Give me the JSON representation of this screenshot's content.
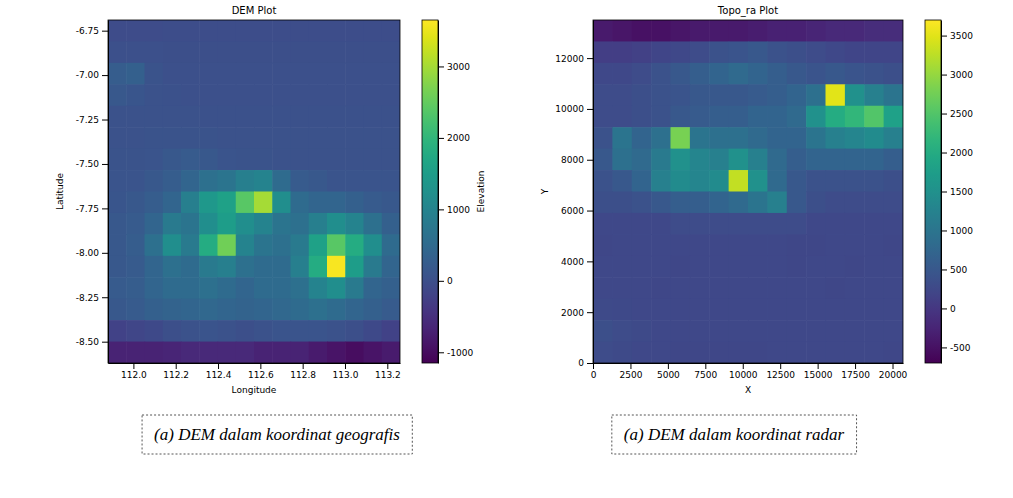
{
  "chart_data": [
    {
      "type": "heatmap",
      "title": "DEM Plot",
      "x_label": "Longitude",
      "y_label": "Latitude",
      "caption": "(a) DEM dalam koordinat geografis",
      "color": "viridis",
      "xlim": [
        111.88,
        113.26
      ],
      "ylim": [
        -8.62,
        -6.69
      ],
      "xticks": [
        {
          "value": 112,
          "label": "112.0"
        },
        112.2,
        112.4,
        112.6,
        112.8,
        {
          "value": 113,
          "label": "113.0"
        },
        113.2
      ],
      "yticks": [
        -6.75,
        {
          "value": -7,
          "label": "-7.00"
        },
        -7.25,
        {
          "value": -7.5,
          "label": "-7.50"
        },
        -7.75,
        {
          "value": -8,
          "label": "-8.00"
        },
        -8.25,
        {
          "value": -8.5,
          "label": "-8.50"
        }
      ],
      "z": [
        [
          -50,
          -50,
          -50,
          -40,
          -40,
          -40,
          -40,
          -40,
          -40,
          -40,
          -40,
          -40,
          -40,
          -40,
          -40,
          -40
        ],
        [
          20,
          30,
          20,
          10,
          10,
          10,
          10,
          10,
          10,
          10,
          10,
          10,
          10,
          10,
          10,
          10
        ],
        [
          250,
          300,
          80,
          30,
          20,
          20,
          20,
          20,
          20,
          20,
          20,
          20,
          20,
          20,
          20,
          20
        ],
        [
          150,
          120,
          50,
          40,
          30,
          30,
          30,
          30,
          30,
          30,
          30,
          30,
          30,
          30,
          30,
          30
        ],
        [
          50,
          50,
          50,
          60,
          50,
          40,
          40,
          40,
          40,
          40,
          40,
          40,
          40,
          40,
          40,
          40
        ],
        [
          60,
          60,
          70,
          80,
          80,
          70,
          60,
          50,
          50,
          50,
          50,
          50,
          50,
          50,
          50,
          50
        ],
        [
          80,
          80,
          100,
          150,
          200,
          150,
          100,
          80,
          80,
          60,
          60,
          60,
          60,
          60,
          60,
          60
        ],
        [
          100,
          100,
          150,
          250,
          400,
          600,
          700,
          900,
          1000,
          500,
          200,
          150,
          100,
          100,
          100,
          100
        ],
        [
          120,
          150,
          250,
          400,
          900,
          1400,
          1600,
          2400,
          3000,
          1200,
          500,
          400,
          400,
          300,
          200,
          150
        ],
        [
          150,
          200,
          400,
          800,
          700,
          1200,
          1500,
          1200,
          1000,
          700,
          600,
          900,
          1200,
          1000,
          600,
          300
        ],
        [
          150,
          250,
          600,
          1200,
          800,
          1800,
          2600,
          1000,
          700,
          600,
          800,
          1600,
          2400,
          1800,
          1200,
          500
        ],
        [
          150,
          200,
          400,
          600,
          500,
          800,
          900,
          600,
          500,
          500,
          900,
          1800,
          3600,
          1500,
          800,
          400
        ],
        [
          200,
          250,
          400,
          500,
          500,
          600,
          500,
          400,
          500,
          500,
          600,
          1000,
          1200,
          800,
          400,
          300
        ],
        [
          150,
          200,
          300,
          350,
          400,
          450,
          400,
          350,
          400,
          450,
          500,
          600,
          500,
          400,
          300,
          200
        ],
        [
          -200,
          -150,
          -100,
          0,
          50,
          100,
          50,
          0,
          50,
          100,
          100,
          100,
          50,
          0,
          -100,
          -200
        ],
        [
          -700,
          -700,
          -700,
          -650,
          -600,
          -600,
          -600,
          -600,
          -700,
          -700,
          -700,
          -800,
          -900,
          -1000,
          -900,
          -800
        ]
      ],
      "colorbar": {
        "label": "Elevation",
        "range": [
          -1150,
          3650
        ],
        "ticks": [
          -1000,
          0,
          1000,
          2000,
          3000
        ]
      }
    },
    {
      "type": "heatmap",
      "title": "Topo_ra Plot",
      "x_label": "X",
      "y_label": "Y",
      "caption": "(a) DEM dalam koordinat radar",
      "color": "viridis",
      "xlim": [
        0,
        20700
      ],
      "ylim": [
        0,
        13500
      ],
      "xticks": [
        0,
        2500,
        5000,
        7500,
        10000,
        12500,
        15000,
        17500,
        20000
      ],
      "yticks": [
        0,
        2000,
        4000,
        6000,
        8000,
        10000,
        12000
      ],
      "z": [
        [
          -400,
          -450,
          -500,
          -500,
          -450,
          -400,
          -400,
          -400,
          -350,
          -300,
          -300,
          -250,
          -200,
          -200,
          -150,
          -150
        ],
        [
          100,
          100,
          150,
          200,
          250,
          300,
          400,
          450,
          500,
          400,
          350,
          300,
          250,
          200,
          200,
          200
        ],
        [
          250,
          250,
          300,
          400,
          500,
          600,
          700,
          800,
          700,
          600,
          500,
          450,
          500,
          450,
          400,
          350
        ],
        [
          300,
          300,
          350,
          400,
          450,
          500,
          500,
          500,
          550,
          600,
          700,
          900,
          3500,
          1500,
          1200,
          1000
        ],
        [
          300,
          300,
          350,
          400,
          500,
          550,
          600,
          600,
          700,
          700,
          800,
          1500,
          2000,
          2200,
          2500,
          1800
        ],
        [
          400,
          1000,
          700,
          900,
          2800,
          1000,
          900,
          900,
          800,
          700,
          700,
          1000,
          1200,
          1300,
          1400,
          1200
        ],
        [
          500,
          900,
          800,
          1100,
          1500,
          1300,
          1200,
          1500,
          1200,
          800,
          600,
          700,
          700,
          700,
          700,
          600
        ],
        [
          400,
          500,
          700,
          1200,
          1400,
          1300,
          1400,
          3300,
          1500,
          800,
          500,
          400,
          400,
          400,
          400,
          350
        ],
        [
          350,
          350,
          400,
          500,
          600,
          600,
          700,
          800,
          1000,
          1200,
          500,
          350,
          300,
          300,
          300,
          300
        ],
        [
          250,
          250,
          250,
          250,
          300,
          300,
          300,
          300,
          300,
          300,
          300,
          250,
          250,
          250,
          250,
          250
        ],
        [
          240,
          250,
          260,
          250,
          250,
          250,
          260,
          250,
          250,
          250,
          240,
          240,
          250,
          250,
          250,
          240
        ],
        [
          250,
          260,
          250,
          250,
          240,
          250,
          250,
          260,
          250,
          250,
          240,
          250,
          250,
          240,
          250,
          250
        ],
        [
          260,
          250,
          250,
          240,
          250,
          250,
          250,
          250,
          260,
          250,
          250,
          250,
          240,
          250,
          250,
          250
        ],
        [
          280,
          270,
          260,
          250,
          250,
          250,
          250,
          250,
          250,
          250,
          250,
          250,
          250,
          250,
          250,
          250
        ],
        [
          350,
          300,
          280,
          260,
          250,
          250,
          250,
          250,
          250,
          260,
          250,
          250,
          250,
          250,
          250,
          250
        ],
        [
          300,
          280,
          260,
          250,
          240,
          240,
          240,
          240,
          240,
          250,
          250,
          250,
          250,
          250,
          250,
          240
        ]
      ],
      "colorbar": {
        "range": [
          -700,
          3700
        ],
        "ticks": [
          -500,
          0,
          500,
          1000,
          1500,
          2000,
          2500,
          3000,
          3500
        ]
      }
    }
  ]
}
